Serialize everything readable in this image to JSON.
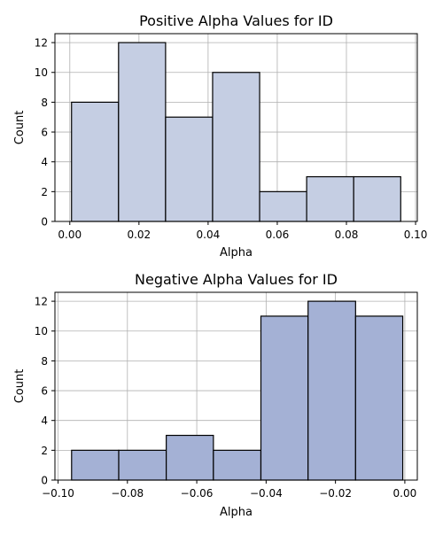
{
  "chart_data": [
    {
      "type": "bar",
      "title": "Positive Alpha Values for ID",
      "xlabel": "Alpha",
      "ylabel": "Count",
      "bin_edges": [
        0.0005,
        0.0141,
        0.0277,
        0.0413,
        0.0549,
        0.0685,
        0.0821,
        0.0957
      ],
      "values": [
        8,
        12,
        7,
        10,
        2,
        3,
        3
      ],
      "xlim": [
        -0.0043,
        0.1005
      ],
      "ylim": [
        0,
        12.6
      ],
      "xticks": [
        0.0,
        0.02,
        0.04,
        0.06,
        0.08,
        0.1
      ],
      "xtick_labels": [
        "0.00",
        "0.02",
        "0.04",
        "0.06",
        "0.08",
        "0.10"
      ],
      "yticks": [
        0,
        2,
        4,
        6,
        8,
        10,
        12
      ],
      "ytick_labels": [
        "0",
        "2",
        "4",
        "6",
        "8",
        "10",
        "12"
      ],
      "bar_color": "#c5cee3",
      "grid": true
    },
    {
      "type": "bar",
      "title": "Negative Alpha Values for ID",
      "xlabel": "Alpha",
      "ylabel": "Count",
      "bin_edges": [
        -0.0961,
        -0.0825,
        -0.0688,
        -0.0552,
        -0.0415,
        -0.0279,
        -0.0142,
        -0.0006
      ],
      "values": [
        2,
        2,
        3,
        2,
        11,
        12,
        11
      ],
      "xlim": [
        -0.1009,
        0.0036
      ],
      "ylim": [
        0,
        12.6
      ],
      "xticks": [
        -0.1,
        -0.08,
        -0.06,
        -0.04,
        -0.02,
        0.0
      ],
      "xtick_labels": [
        "−0.10",
        "−0.08",
        "−0.06",
        "−0.04",
        "−0.02",
        "0.00"
      ],
      "yticks": [
        0,
        2,
        4,
        6,
        8,
        10,
        12
      ],
      "ytick_labels": [
        "0",
        "2",
        "4",
        "6",
        "8",
        "10",
        "12"
      ],
      "bar_color": "#a4b1d5",
      "grid": true
    }
  ]
}
